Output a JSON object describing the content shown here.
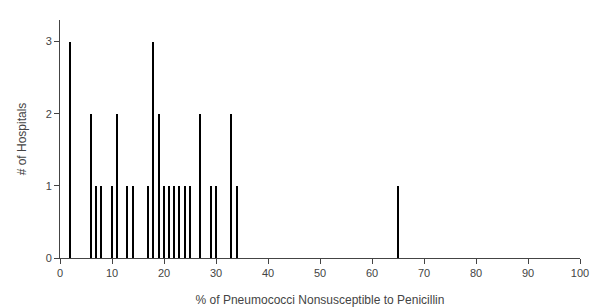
{
  "chart_data": {
    "type": "bar",
    "xlabel": "% of Pneumococci Nonsusceptible to Penicillin",
    "ylabel": "# of Hospitals",
    "x": [
      2,
      6,
      7,
      8,
      10,
      11,
      13,
      14,
      17,
      18,
      19,
      20,
      21,
      22,
      23,
      24,
      25,
      27,
      29,
      30,
      33,
      34,
      65
    ],
    "values": [
      3,
      2,
      1,
      1,
      1,
      2,
      1,
      1,
      1,
      3,
      2,
      1,
      1,
      1,
      1,
      1,
      1,
      2,
      1,
      1,
      2,
      1,
      1
    ],
    "color": "#000000",
    "xlim": [
      0,
      100
    ],
    "ylim": [
      0,
      3.3
    ],
    "xticks": [
      0,
      10,
      20,
      30,
      40,
      50,
      60,
      70,
      80,
      90,
      100
    ],
    "yticks": [
      0,
      1,
      2,
      3
    ],
    "grid": false
  }
}
